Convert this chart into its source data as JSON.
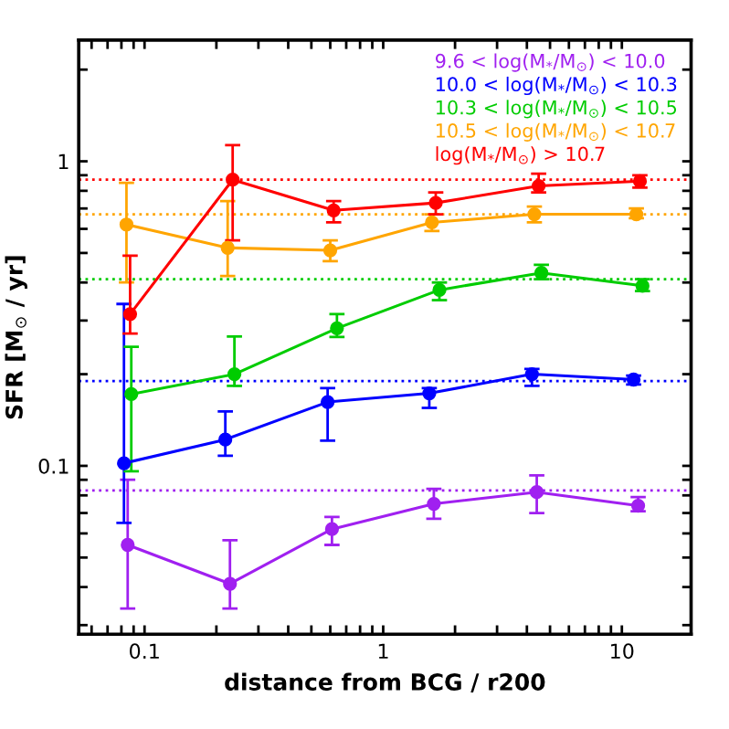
{
  "chart_data": {
    "type": "line",
    "xlabel": "distance from BCG / r200",
    "ylabel": "SFR [M$_{⊙}$ / yr]",
    "log": "xy",
    "marker": "circle",
    "line_style": "solid",
    "grid": false,
    "legend": "top right",
    "xlim": [
      0.053,
      19.5
    ],
    "ylim": [
      0.028,
      2.5
    ],
    "xticks": [
      {
        "value": 0.06,
        "label": null
      },
      {
        "value": 0.07,
        "label": null
      },
      {
        "value": 0.08,
        "label": null
      },
      {
        "value": 0.09,
        "label": null
      },
      0.1,
      {
        "value": 0.2,
        "label": null
      },
      {
        "value": 0.3,
        "label": null
      },
      {
        "value": 0.4,
        "label": null
      },
      {
        "value": 0.5,
        "label": null
      },
      {
        "value": 0.6,
        "label": null
      },
      {
        "value": 0.7,
        "label": null
      },
      {
        "value": 0.8,
        "label": null
      },
      {
        "value": 0.9,
        "label": null
      },
      1,
      {
        "value": 2,
        "label": null
      },
      {
        "value": 3,
        "label": null
      },
      {
        "value": 4,
        "label": null
      },
      {
        "value": 5,
        "label": null
      },
      {
        "value": 6,
        "label": null
      },
      {
        "value": 7,
        "label": null
      },
      {
        "value": 8,
        "label": null
      },
      {
        "value": 9,
        "label": null
      },
      10
    ],
    "yticks": [
      {
        "value": 0.03,
        "label": null
      },
      {
        "value": 0.04,
        "label": null
      },
      {
        "value": 0.05,
        "label": null
      },
      {
        "value": 0.06,
        "label": null
      },
      {
        "value": 0.07,
        "label": null
      },
      {
        "value": 0.08,
        "label": null
      },
      {
        "value": 0.09,
        "label": null
      },
      0.1,
      {
        "value": 0.2,
        "label": null
      },
      {
        "value": 0.3,
        "label": null
      },
      {
        "value": 0.4,
        "label": null
      },
      {
        "value": 0.5,
        "label": null
      },
      {
        "value": 0.6,
        "label": null
      },
      {
        "value": 0.7,
        "label": null
      },
      {
        "value": 0.8,
        "label": null
      },
      {
        "value": 0.9,
        "label": null
      },
      1,
      {
        "value": 2,
        "label": null
      }
    ],
    "series": [
      {
        "name": "9.6 < log(M$_{*}$/M$_{⊙}$) < 10.0",
        "color": "#a020f0",
        "x": [
          0.085,
          0.228,
          0.61,
          1.63,
          4.4,
          11.7
        ],
        "values": [
          0.055,
          0.041,
          0.062,
          0.075,
          0.082,
          0.074
        ],
        "errors": [
          [
            0.034,
            0.09
          ],
          [
            0.034,
            0.057
          ],
          [
            0.055,
            0.068
          ],
          [
            0.067,
            0.084
          ],
          [
            0.07,
            0.093
          ],
          [
            0.071,
            0.079
          ]
        ]
      },
      {
        "name": "10.0 < log(M$_{*}$/M$_{⊙}$) < 10.3",
        "color": "#0000ff",
        "x": [
          0.082,
          0.218,
          0.585,
          1.56,
          4.2,
          11.2
        ],
        "values": [
          0.102,
          0.122,
          0.162,
          0.173,
          0.2,
          0.192
        ],
        "errors": [
          [
            0.065,
            0.34
          ],
          [
            0.108,
            0.151
          ],
          [
            0.121,
            0.18
          ],
          [
            0.155,
            0.18
          ],
          [
            0.183,
            0.208
          ],
          [
            0.185,
            0.198
          ]
        ]
      },
      {
        "name": "10.3 < log(M$_{*}$/M$_{⊙}$) < 10.5",
        "color": "#00cc00",
        "x": [
          0.088,
          0.238,
          0.64,
          1.72,
          4.6,
          12.2
        ],
        "values": [
          0.172,
          0.2,
          0.283,
          0.378,
          0.43,
          0.39
        ],
        "errors": [
          [
            0.096,
            0.246
          ],
          [
            0.183,
            0.266
          ],
          [
            0.265,
            0.315
          ],
          [
            0.35,
            0.4
          ],
          [
            0.41,
            0.457
          ],
          [
            0.375,
            0.41
          ]
        ]
      },
      {
        "name": "10.5 < log(M$_{*}$/M$_{⊙}$) < 10.7",
        "color": "#ffa500",
        "x": [
          0.084,
          0.223,
          0.6,
          1.6,
          4.3,
          11.5
        ],
        "values": [
          0.62,
          0.52,
          0.51,
          0.63,
          0.67,
          0.67
        ],
        "errors": [
          [
            0.4,
            0.85
          ],
          [
            0.42,
            0.74
          ],
          [
            0.47,
            0.55
          ],
          [
            0.59,
            0.67
          ],
          [
            0.63,
            0.71
          ],
          [
            0.65,
            0.7
          ]
        ]
      },
      {
        "name": "log(M$_{*}$/M$_{⊙}$) > 10.7",
        "color": "#ff0000",
        "x": [
          0.087,
          0.234,
          0.62,
          1.66,
          4.48,
          11.9
        ],
        "values": [
          0.315,
          0.87,
          0.69,
          0.73,
          0.83,
          0.86
        ],
        "errors": [
          [
            0.272,
            0.49
          ],
          [
            0.55,
            1.13
          ],
          [
            0.63,
            0.74
          ],
          [
            0.67,
            0.79
          ],
          [
            0.79,
            0.91
          ],
          [
            0.82,
            0.9
          ]
        ]
      }
    ],
    "ref_lines": [
      {
        "axis": "y",
        "value": 0.083,
        "color": "#a020f0",
        "line_style": "dotted"
      },
      {
        "axis": "y",
        "value": 0.19,
        "color": "#0000ff",
        "line_style": "dotted"
      },
      {
        "axis": "y",
        "value": 0.41,
        "color": "#00cc00",
        "line_style": "dotted"
      },
      {
        "axis": "y",
        "value": 0.67,
        "color": "#ffa500",
        "line_style": "dotted"
      },
      {
        "axis": "y",
        "value": 0.87,
        "color": "#ff0000",
        "line_style": "dotted"
      }
    ]
  }
}
